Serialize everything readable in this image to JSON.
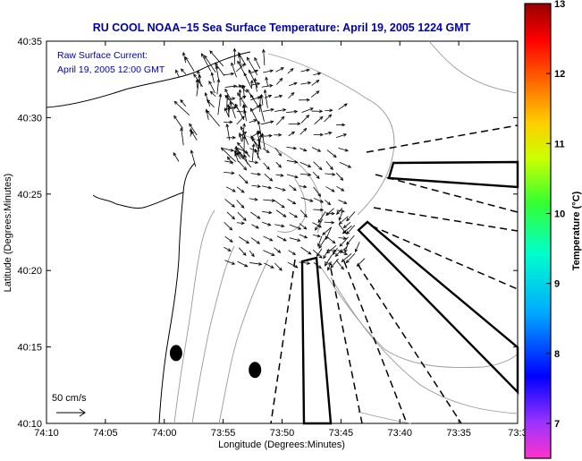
{
  "chart_data": {
    "type": "vector-field",
    "title": "RU COOL  NOAA−15  Sea Surface Temperature:  April 19, 2005 1224 GMT",
    "xlabel": "Longitude (Degrees:Minutes)",
    "ylabel": "Latitude (Degrees:Minutes)",
    "x_ticks": [
      "74:10",
      "74:05",
      "74:00",
      "73:55",
      "73:50",
      "73:45",
      "73:40",
      "73:35",
      "73:3"
    ],
    "y_ticks": [
      "40:35",
      "40:30",
      "40:25",
      "40:20",
      "40:15",
      "40:10"
    ],
    "xlim_minutes_west": [
      10,
      -30
    ],
    "ylim_minutes_north": [
      10,
      35
    ],
    "annotations": {
      "line1": "Raw Surface Current:",
      "line2": "April 19, 2005 12:00 GMT",
      "scale": "50 cm/s"
    },
    "colorbar": {
      "label": "Temperature (°C)",
      "min": 6.5,
      "max": 13,
      "ticks": [
        "13",
        "12",
        "11",
        "10",
        "9",
        "8",
        "7"
      ],
      "tick_values": [
        13,
        12,
        11,
        10,
        9,
        8,
        7
      ]
    },
    "markers": [
      {
        "lon_min": 59,
        "lat_min": 14.6
      },
      {
        "lon_min": 52.3,
        "lat_min": 13.5
      }
    ]
  }
}
